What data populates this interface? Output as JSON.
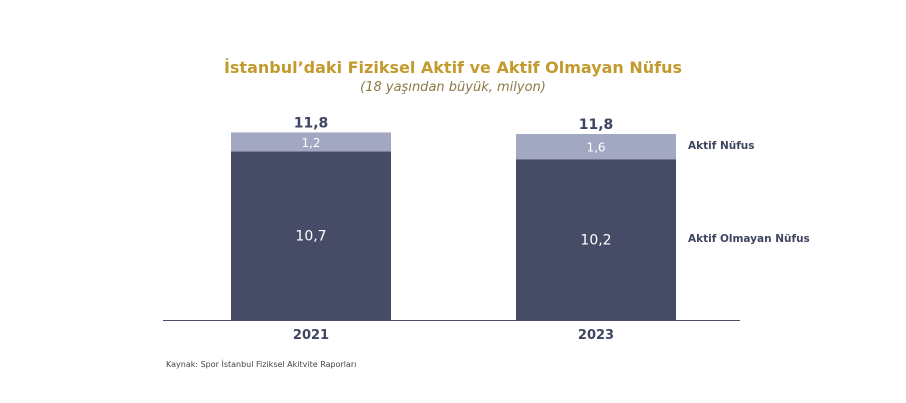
{
  "chart_data": {
    "type": "bar",
    "stacked": true,
    "title": "İstanbul’daki Fiziksel Aktif ve Aktif Olmayan Nüfus",
    "subtitle": "(18 yaşından büyük, milyon)",
    "categories": [
      "2021",
      "2023"
    ],
    "totals": [
      "11,8",
      "11,8"
    ],
    "series": [
      {
        "name": "Aktif Olmayan Nüfus",
        "values": [
          10.7,
          10.2
        ],
        "labels": [
          "10,7",
          "10,2"
        ],
        "color": "#464c66"
      },
      {
        "name": "Aktif Nüfus",
        "values": [
          1.2,
          1.6
        ],
        "labels": [
          "1,2",
          "1,6"
        ],
        "color": "#a3a8c2"
      }
    ],
    "ylim": [
      0,
      11.8
    ],
    "legend_placement": "right",
    "grid": false
  },
  "source": "Kaynak: Spor İstanbul Fiziksel Akitvite Raporları"
}
